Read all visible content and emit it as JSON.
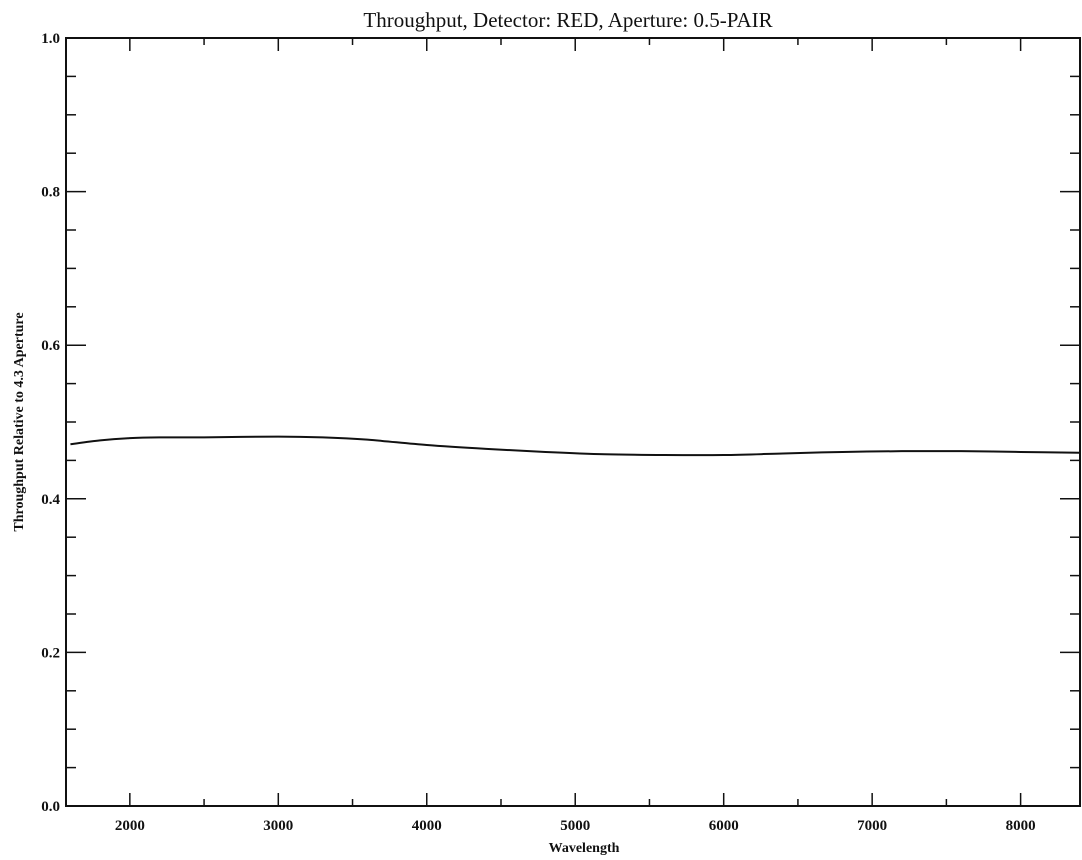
{
  "chart_data": {
    "type": "line",
    "title": "Throughput, Detector: RED, Aperture: 0.5-PAIR",
    "xlabel": "Wavelength",
    "ylabel": "Throughput Relative to 4.3 Aperture",
    "xlim": [
      1570,
      8400
    ],
    "ylim": [
      0.0,
      1.0
    ],
    "x_ticks": [
      2000,
      3000,
      4000,
      5000,
      6000,
      7000,
      8000
    ],
    "x_tick_labels": [
      "2000",
      "3000",
      "4000",
      "5000",
      "6000",
      "7000",
      "8000"
    ],
    "y_ticks": [
      0.0,
      0.2,
      0.4,
      0.6,
      0.8,
      1.0
    ],
    "y_tick_labels": [
      "0.0",
      "0.2",
      "0.4",
      "0.6",
      "0.8",
      "1.0"
    ],
    "x_minor_step": 500,
    "y_minor_step": 0.05,
    "grid": false,
    "line_color": "#111111",
    "series": [
      {
        "name": "",
        "x": [
          1600,
          1800,
          2000,
          2200,
          2500,
          3000,
          3300,
          3600,
          4000,
          4400,
          4800,
          5200,
          5600,
          6000,
          6400,
          6800,
          7200,
          7600,
          8000,
          8400
        ],
        "y": [
          0.471,
          0.476,
          0.479,
          0.48,
          0.48,
          0.481,
          0.48,
          0.477,
          0.47,
          0.465,
          0.461,
          0.458,
          0.457,
          0.457,
          0.459,
          0.461,
          0.462,
          0.462,
          0.461,
          0.46
        ]
      }
    ]
  }
}
